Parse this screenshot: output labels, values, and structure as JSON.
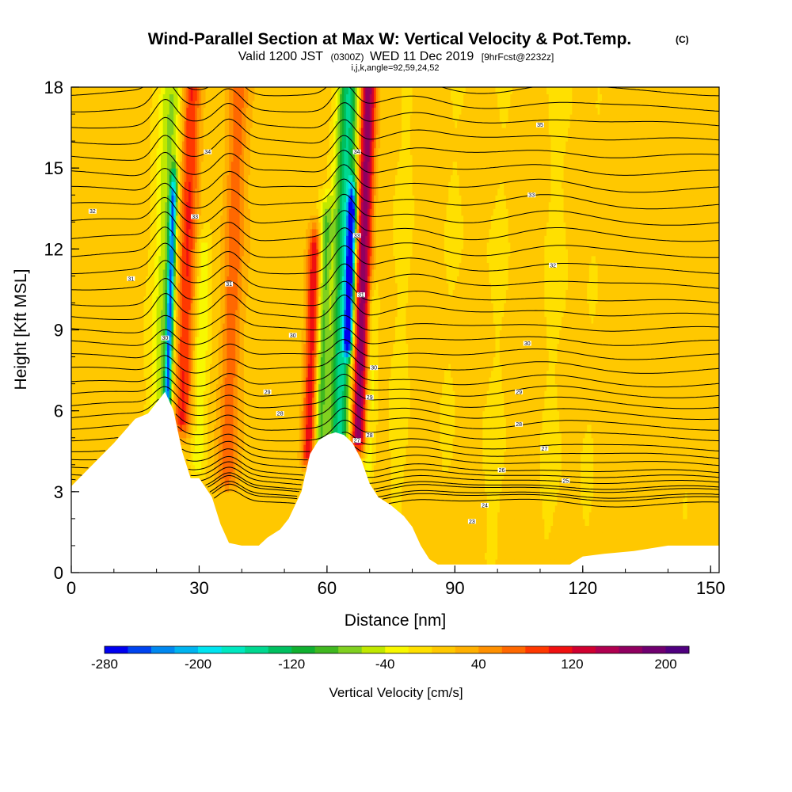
{
  "chart_data": {
    "type": "heatmap",
    "title": "Wind-Parallel Section at Max W: Vertical Velocity & Pot.Temp.",
    "title_mark": "(C)",
    "subtitle_prefix": "Valid 1200 JST",
    "subtitle_utc": "(0300Z)",
    "subtitle_date": "WED 11 Dec 2019",
    "subtitle_fcst": "[9hrFcst@2232z]",
    "subtitle_indices": "i,j,k,angle=92,59,24,52",
    "xlabel": "Distance [nm]",
    "ylabel": "Height [Kft MSL]",
    "xlim": [
      0,
      152
    ],
    "ylim": [
      0,
      18
    ],
    "x_ticks": [
      0,
      30,
      60,
      90,
      120,
      150
    ],
    "y_ticks": [
      0,
      3,
      6,
      9,
      12,
      15,
      18
    ],
    "colorbar": {
      "title": "Vertical Velocity [cm/s]",
      "min": -280,
      "max": 220,
      "step": 20,
      "tick_values": [
        -280,
        -200,
        -120,
        -40,
        40,
        120,
        200
      ],
      "colors": [
        "#0000f0",
        "#0044f0",
        "#0088f0",
        "#00b4f0",
        "#00e4f0",
        "#00e8c0",
        "#00d890",
        "#00c060",
        "#10b030",
        "#40b820",
        "#80d020",
        "#c0e800",
        "#f8f800",
        "#ffe000",
        "#ffc800",
        "#ffb000",
        "#ff9000",
        "#ff6800",
        "#ff3800",
        "#f01010",
        "#d00030",
        "#b00050",
        "#900060",
        "#700070",
        "#500080"
      ]
    },
    "terrain": [
      [
        0,
        3.2
      ],
      [
        5,
        4.0
      ],
      [
        10,
        4.8
      ],
      [
        15,
        5.7
      ],
      [
        18,
        5.9
      ],
      [
        20,
        6.3
      ],
      [
        22,
        6.7
      ],
      [
        24,
        6.0
      ],
      [
        26,
        4.5
      ],
      [
        28,
        3.5
      ],
      [
        30,
        3.5
      ],
      [
        33,
        2.8
      ],
      [
        35,
        1.8
      ],
      [
        37,
        1.1
      ],
      [
        40,
        1.0
      ],
      [
        44,
        1.0
      ],
      [
        46,
        1.3
      ],
      [
        49,
        1.6
      ],
      [
        51,
        2.0
      ],
      [
        54,
        3.0
      ],
      [
        56,
        4.4
      ],
      [
        58,
        4.9
      ],
      [
        60,
        5.1
      ],
      [
        62,
        5.2
      ],
      [
        64,
        5.1
      ],
      [
        66,
        4.8
      ],
      [
        68,
        4.2
      ],
      [
        70,
        3.3
      ],
      [
        72,
        2.8
      ],
      [
        75,
        2.5
      ],
      [
        78,
        2.1
      ],
      [
        80,
        1.7
      ],
      [
        82,
        1.0
      ],
      [
        84,
        0.5
      ],
      [
        86,
        0.3
      ],
      [
        95,
        0.3
      ],
      [
        100,
        0.3
      ],
      [
        110,
        0.3
      ],
      [
        117,
        0.3
      ],
      [
        120,
        0.6
      ],
      [
        125,
        0.7
      ],
      [
        132,
        0.8
      ],
      [
        140,
        1.0
      ],
      [
        152,
        1.0
      ]
    ],
    "vv_features": [
      {
        "x": 21.5,
        "w": 3.0,
        "bot": 5.8,
        "top": 18,
        "v": -75
      },
      {
        "x": 22.5,
        "w": 0.8,
        "bot": 6.5,
        "top": 14.0,
        "v": -200
      },
      {
        "x": 26.0,
        "w": 2.2,
        "bot": 5.6,
        "top": 18,
        "v": 95
      },
      {
        "x": 30.0,
        "w": 1.8,
        "bot": 4.0,
        "top": 12.0,
        "v": -45
      },
      {
        "x": 37.0,
        "w": 2.4,
        "bot": 3.5,
        "top": 18,
        "v": 65
      },
      {
        "x": 56.0,
        "w": 1.6,
        "bot": 4.4,
        "top": 12.0,
        "v": 110
      },
      {
        "x": 58.5,
        "w": 1.4,
        "bot": 4.6,
        "top": 13.0,
        "v": -90
      },
      {
        "x": 63.0,
        "w": 2.6,
        "bot": 5.0,
        "top": 18,
        "v": -160
      },
      {
        "x": 64.5,
        "w": 1.0,
        "bot": 8.5,
        "top": 13.5,
        "v": -240
      },
      {
        "x": 67.5,
        "w": 1.8,
        "bot": 5.0,
        "top": 18,
        "v": 170
      },
      {
        "x": 70.0,
        "w": 1.4,
        "bot": 3.8,
        "top": 10.0,
        "v": -45
      },
      {
        "x": 77.0,
        "w": 2.5,
        "bot": 2.0,
        "top": 18,
        "v": -12
      },
      {
        "x": 88.0,
        "w": 3.0,
        "bot": 1.0,
        "top": 18,
        "v": -14
      },
      {
        "x": 100.0,
        "w": 3.0,
        "bot": 0.5,
        "top": 18,
        "v": -12
      },
      {
        "x": 112.0,
        "w": 3.0,
        "bot": 0.5,
        "top": 18,
        "v": -13
      },
      {
        "x": 122.0,
        "w": 2.5,
        "bot": 1.0,
        "top": 18,
        "v": -10
      },
      {
        "x": 145.0,
        "w": 2.5,
        "bot": 1.0,
        "top": 18,
        "v": -10
      }
    ],
    "theta_levels": [
      2.5,
      2.7,
      2.8,
      3.0,
      3.1,
      3.3,
      3.5,
      3.7,
      4.0,
      4.3,
      4.6,
      5.0,
      5.4,
      5.8,
      6.2,
      6.6,
      7.0,
      7.5,
      8.0,
      8.5,
      9.0,
      9.5,
      10.0,
      10.6,
      11.2,
      11.8,
      12.4,
      13.0,
      13.6,
      14.2,
      14.8,
      15.4,
      16.0,
      16.6,
      17.2,
      17.8
    ],
    "theta_labels": [
      {
        "x": 5,
        "y": 13.4,
        "text": "32"
      },
      {
        "x": 14,
        "y": 10.9,
        "text": "31"
      },
      {
        "x": 22,
        "y": 8.7,
        "text": "30"
      },
      {
        "x": 32,
        "y": 15.6,
        "text": "34"
      },
      {
        "x": 29,
        "y": 13.2,
        "text": "33"
      },
      {
        "x": 37,
        "y": 10.7,
        "text": "31"
      },
      {
        "x": 52,
        "y": 8.8,
        "text": "30"
      },
      {
        "x": 46,
        "y": 6.7,
        "text": "29"
      },
      {
        "x": 49,
        "y": 5.9,
        "text": "28"
      },
      {
        "x": 67,
        "y": 15.6,
        "text": "34"
      },
      {
        "x": 67,
        "y": 12.5,
        "text": "33"
      },
      {
        "x": 68,
        "y": 10.3,
        "text": "31"
      },
      {
        "x": 71,
        "y": 7.6,
        "text": "30"
      },
      {
        "x": 70,
        "y": 6.5,
        "text": "29"
      },
      {
        "x": 70,
        "y": 5.1,
        "text": "28"
      },
      {
        "x": 67,
        "y": 4.9,
        "text": "27"
      },
      {
        "x": 110,
        "y": 16.6,
        "text": "35"
      },
      {
        "x": 108,
        "y": 14.0,
        "text": "33"
      },
      {
        "x": 113,
        "y": 11.4,
        "text": "32"
      },
      {
        "x": 107,
        "y": 8.5,
        "text": "30"
      },
      {
        "x": 105,
        "y": 6.7,
        "text": "29"
      },
      {
        "x": 105,
        "y": 5.5,
        "text": "28"
      },
      {
        "x": 111,
        "y": 4.6,
        "text": "27"
      },
      {
        "x": 101,
        "y": 3.8,
        "text": "26"
      },
      {
        "x": 116,
        "y": 3.4,
        "text": "25"
      },
      {
        "x": 97,
        "y": 2.5,
        "text": "24"
      },
      {
        "x": 94,
        "y": 1.9,
        "text": "23"
      }
    ]
  }
}
